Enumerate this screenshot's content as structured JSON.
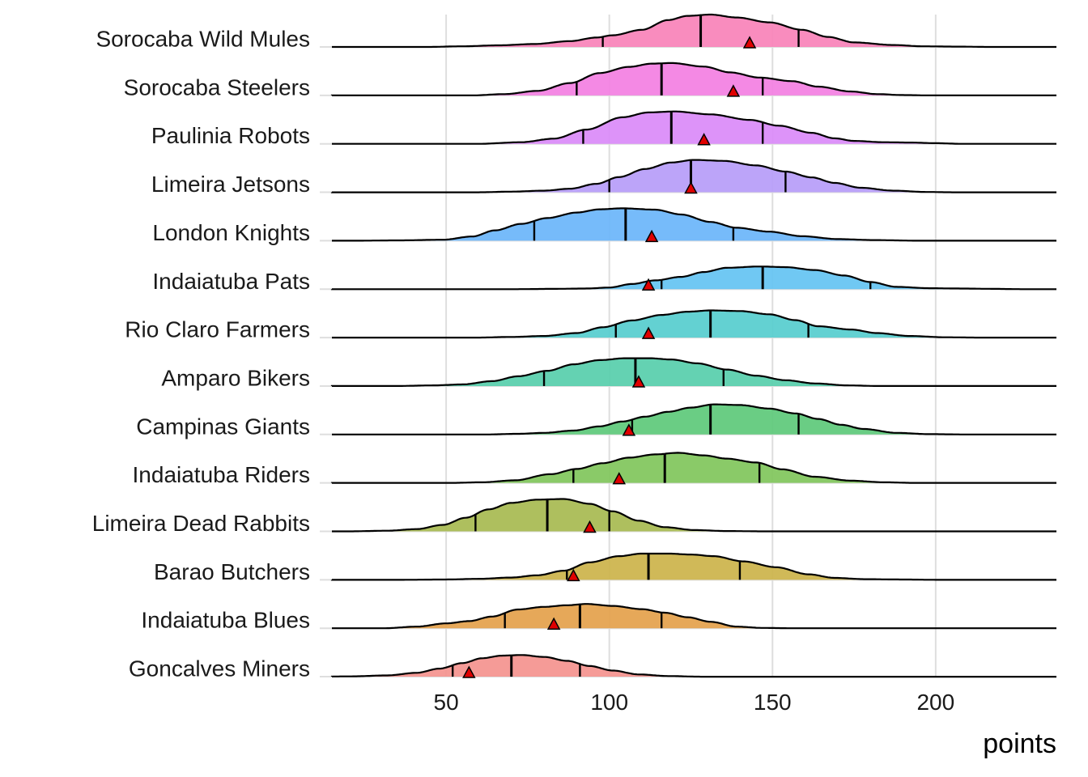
{
  "chart_data": {
    "type": "ridgeline",
    "title": "",
    "xlabel": "points",
    "ylabel": "",
    "xlim": [
      15,
      237
    ],
    "xticks": [
      50,
      100,
      150,
      200
    ],
    "grid": true,
    "marker": "red triangle = mean",
    "quantile_lines": "25th, 50th, 75th percentiles",
    "series": [
      {
        "name": "Sorocaba Wild Mules",
        "color": "#F982B9",
        "q": [
          98,
          128,
          158
        ],
        "mean": 143,
        "density": [
          [
            44,
            0
          ],
          [
            55,
            0.02
          ],
          [
            66,
            0.05
          ],
          [
            77,
            0.09
          ],
          [
            88,
            0.18
          ],
          [
            96,
            0.29
          ],
          [
            101,
            0.36
          ],
          [
            110,
            0.53
          ],
          [
            118,
            0.83
          ],
          [
            124,
            0.96
          ],
          [
            131,
            1.0
          ],
          [
            139,
            0.91
          ],
          [
            149,
            0.76
          ],
          [
            159,
            0.53
          ],
          [
            167,
            0.31
          ],
          [
            175,
            0.14
          ],
          [
            187,
            0.06
          ],
          [
            196,
            0.02
          ],
          [
            207,
            0.01
          ],
          [
            217,
            0
          ]
        ]
      },
      {
        "name": "Sorocaba Steelers",
        "color": "#F37FE2",
        "q": [
          90,
          116,
          147
        ],
        "mean": 138,
        "density": [
          [
            58,
            0
          ],
          [
            68,
            0.04
          ],
          [
            78,
            0.14
          ],
          [
            88,
            0.38
          ],
          [
            97,
            0.69
          ],
          [
            106,
            0.88
          ],
          [
            113,
            0.98
          ],
          [
            119,
            1.0
          ],
          [
            129,
            0.89
          ],
          [
            137,
            0.71
          ],
          [
            146,
            0.55
          ],
          [
            156,
            0.44
          ],
          [
            164,
            0.27
          ],
          [
            174,
            0.12
          ],
          [
            182,
            0.04
          ],
          [
            190,
            0.01
          ],
          [
            198,
            0
          ]
        ]
      },
      {
        "name": "Paulinia Robots",
        "color": "#DA8AF8",
        "q": [
          92,
          119,
          147
        ],
        "mean": 129,
        "density": [
          [
            60,
            0
          ],
          [
            73,
            0.05
          ],
          [
            83,
            0.16
          ],
          [
            93,
            0.44
          ],
          [
            104,
            0.82
          ],
          [
            112,
            0.97
          ],
          [
            120,
            1.0
          ],
          [
            131,
            0.91
          ],
          [
            143,
            0.74
          ],
          [
            152,
            0.56
          ],
          [
            162,
            0.34
          ],
          [
            169,
            0.17
          ],
          [
            175,
            0.09
          ],
          [
            184,
            0.05
          ],
          [
            192,
            0.04
          ],
          [
            200,
            0.02
          ],
          [
            208,
            0
          ]
        ]
      },
      {
        "name": "Limeira Jetsons",
        "color": "#B69CF9",
        "q": [
          100,
          125,
          154
        ],
        "mean": 125,
        "density": [
          [
            60,
            0
          ],
          [
            70,
            0.02
          ],
          [
            80,
            0.05
          ],
          [
            88,
            0.11
          ],
          [
            96,
            0.26
          ],
          [
            103,
            0.47
          ],
          [
            111,
            0.72
          ],
          [
            119,
            0.92
          ],
          [
            126,
            1.0
          ],
          [
            135,
            0.97
          ],
          [
            145,
            0.83
          ],
          [
            154,
            0.64
          ],
          [
            162,
            0.46
          ],
          [
            169,
            0.29
          ],
          [
            177,
            0.14
          ],
          [
            187,
            0.05
          ],
          [
            197,
            0.01
          ],
          [
            205,
            0
          ]
        ]
      },
      {
        "name": "London Knights",
        "color": "#6AB5FA",
        "q": [
          77,
          105,
          138
        ],
        "mean": 113,
        "density": [
          [
            22,
            0
          ],
          [
            35,
            0.01
          ],
          [
            49,
            0.03
          ],
          [
            58,
            0.13
          ],
          [
            65,
            0.32
          ],
          [
            73,
            0.52
          ],
          [
            81,
            0.7
          ],
          [
            90,
            0.87
          ],
          [
            97,
            0.97
          ],
          [
            104,
            1.0
          ],
          [
            114,
            0.96
          ],
          [
            122,
            0.81
          ],
          [
            131,
            0.58
          ],
          [
            139,
            0.4
          ],
          [
            149,
            0.28
          ],
          [
            159,
            0.14
          ],
          [
            170,
            0.05
          ],
          [
            181,
            0.02
          ],
          [
            195,
            0
          ]
        ]
      },
      {
        "name": "Indaiatuba Pats",
        "color": "#64C3F2",
        "q": [
          116,
          147,
          180
        ],
        "mean": 112,
        "density": [
          [
            72,
            0
          ],
          [
            84,
            0.01
          ],
          [
            93,
            0.02
          ],
          [
            100,
            0.05
          ],
          [
            107,
            0.16
          ],
          [
            114,
            0.27
          ],
          [
            122,
            0.38
          ],
          [
            129,
            0.53
          ],
          [
            136,
            0.66
          ],
          [
            146,
            0.7
          ],
          [
            154,
            0.68
          ],
          [
            163,
            0.59
          ],
          [
            172,
            0.42
          ],
          [
            180,
            0.22
          ],
          [
            188,
            0.07
          ],
          [
            198,
            0.03
          ],
          [
            207,
            0.02
          ],
          [
            217,
            0.01
          ],
          [
            226,
            0
          ]
        ]
      },
      {
        "name": "Rio Claro Farmers",
        "color": "#56CDCE",
        "q": [
          102,
          131,
          161
        ],
        "mean": 112,
        "density": [
          [
            59,
            0
          ],
          [
            70,
            0.02
          ],
          [
            80,
            0.05
          ],
          [
            90,
            0.14
          ],
          [
            98,
            0.32
          ],
          [
            107,
            0.53
          ],
          [
            116,
            0.7
          ],
          [
            124,
            0.8
          ],
          [
            131,
            0.84
          ],
          [
            140,
            0.82
          ],
          [
            149,
            0.72
          ],
          [
            157,
            0.54
          ],
          [
            164,
            0.35
          ],
          [
            174,
            0.25
          ],
          [
            182,
            0.14
          ],
          [
            192,
            0.05
          ],
          [
            203,
            0.01
          ],
          [
            214,
            0
          ]
        ]
      },
      {
        "name": "Amparo Bikers",
        "color": "#57CEAB",
        "q": [
          80,
          108,
          135
        ],
        "mean": 109,
        "density": [
          [
            34,
            0
          ],
          [
            46,
            0.02
          ],
          [
            55,
            0.05
          ],
          [
            64,
            0.15
          ],
          [
            72,
            0.3
          ],
          [
            81,
            0.47
          ],
          [
            89,
            0.67
          ],
          [
            97,
            0.8
          ],
          [
            105,
            0.86
          ],
          [
            112,
            0.86
          ],
          [
            119,
            0.82
          ],
          [
            127,
            0.7
          ],
          [
            136,
            0.51
          ],
          [
            145,
            0.32
          ],
          [
            154,
            0.18
          ],
          [
            163,
            0.08
          ],
          [
            173,
            0.02
          ],
          [
            183,
            0
          ]
        ]
      },
      {
        "name": "Campinas Giants",
        "color": "#5DC97A",
        "q": [
          107,
          131,
          158
        ],
        "mean": 106,
        "density": [
          [
            62,
            0
          ],
          [
            72,
            0.02
          ],
          [
            80,
            0.05
          ],
          [
            89,
            0.12
          ],
          [
            97,
            0.25
          ],
          [
            104,
            0.4
          ],
          [
            111,
            0.55
          ],
          [
            118,
            0.7
          ],
          [
            125,
            0.83
          ],
          [
            132,
            0.93
          ],
          [
            140,
            0.91
          ],
          [
            149,
            0.8
          ],
          [
            157,
            0.65
          ],
          [
            164,
            0.48
          ],
          [
            171,
            0.3
          ],
          [
            178,
            0.17
          ],
          [
            188,
            0.05
          ],
          [
            198,
            0.01
          ],
          [
            210,
            0
          ]
        ]
      },
      {
        "name": "Indaiatuba Riders",
        "color": "#80C65B",
        "q": [
          89,
          117,
          146
        ],
        "mean": 103,
        "density": [
          [
            51,
            0
          ],
          [
            61,
            0.02
          ],
          [
            71,
            0.08
          ],
          [
            82,
            0.27
          ],
          [
            90,
            0.43
          ],
          [
            98,
            0.61
          ],
          [
            106,
            0.78
          ],
          [
            114,
            0.88
          ],
          [
            121,
            0.93
          ],
          [
            129,
            0.85
          ],
          [
            136,
            0.75
          ],
          [
            145,
            0.63
          ],
          [
            153,
            0.42
          ],
          [
            163,
            0.19
          ],
          [
            174,
            0.07
          ],
          [
            184,
            0.02
          ],
          [
            194,
            0
          ]
        ]
      },
      {
        "name": "Limeira Dead Rabbits",
        "color": "#A7BA50",
        "q": [
          59,
          81,
          100
        ],
        "mean": 94,
        "density": [
          [
            20,
            0
          ],
          [
            32,
            0.02
          ],
          [
            41,
            0.07
          ],
          [
            49,
            0.2
          ],
          [
            56,
            0.42
          ],
          [
            63,
            0.68
          ],
          [
            70,
            0.88
          ],
          [
            78,
            0.98
          ],
          [
            86,
            1.0
          ],
          [
            94,
            0.85
          ],
          [
            101,
            0.62
          ],
          [
            109,
            0.33
          ],
          [
            117,
            0.13
          ],
          [
            126,
            0.04
          ],
          [
            136,
            0.01
          ],
          [
            148,
            0
          ]
        ]
      },
      {
        "name": "Barao Butchers",
        "color": "#CCB34A",
        "q": [
          87,
          112,
          140
        ],
        "mean": 89,
        "density": [
          [
            37,
            0
          ],
          [
            50,
            0.01
          ],
          [
            60,
            0.03
          ],
          [
            70,
            0.07
          ],
          [
            78,
            0.14
          ],
          [
            86,
            0.28
          ],
          [
            94,
            0.54
          ],
          [
            103,
            0.73
          ],
          [
            110,
            0.81
          ],
          [
            118,
            0.81
          ],
          [
            125,
            0.78
          ],
          [
            132,
            0.73
          ],
          [
            141,
            0.57
          ],
          [
            151,
            0.39
          ],
          [
            161,
            0.17
          ],
          [
            169,
            0.06
          ],
          [
            178,
            0.02
          ],
          [
            189,
            0.01
          ],
          [
            200,
            0
          ]
        ]
      },
      {
        "name": "Indaiatuba Blues",
        "color": "#E4A14B",
        "q": [
          68,
          91,
          116
        ],
        "mean": 83,
        "density": [
          [
            31,
            0
          ],
          [
            41,
            0.05
          ],
          [
            50,
            0.15
          ],
          [
            57,
            0.22
          ],
          [
            64,
            0.36
          ],
          [
            72,
            0.58
          ],
          [
            80,
            0.66
          ],
          [
            87,
            0.71
          ],
          [
            93,
            0.75
          ],
          [
            101,
            0.69
          ],
          [
            110,
            0.59
          ],
          [
            117,
            0.48
          ],
          [
            124,
            0.34
          ],
          [
            131,
            0.2
          ],
          [
            139,
            0.05
          ],
          [
            147,
            0.01
          ],
          [
            156,
            0
          ]
        ]
      },
      {
        "name": "Goncalves Miners",
        "color": "#F4928E",
        "q": [
          52,
          70,
          91
        ],
        "mean": 57,
        "density": [
          [
            9,
            0
          ],
          [
            21,
            0.01
          ],
          [
            32,
            0.04
          ],
          [
            41,
            0.12
          ],
          [
            48,
            0.25
          ],
          [
            55,
            0.42
          ],
          [
            61,
            0.57
          ],
          [
            67,
            0.65
          ],
          [
            73,
            0.67
          ],
          [
            80,
            0.61
          ],
          [
            87,
            0.49
          ],
          [
            94,
            0.33
          ],
          [
            101,
            0.19
          ],
          [
            109,
            0.07
          ],
          [
            118,
            0.02
          ],
          [
            128,
            0
          ]
        ]
      }
    ]
  }
}
